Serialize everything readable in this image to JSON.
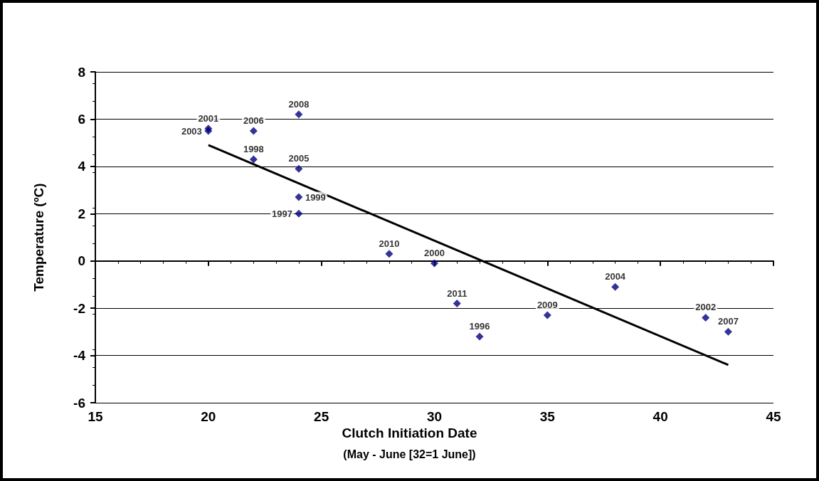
{
  "chart_data": {
    "type": "scatter",
    "xlabel": "Clutch Initiation Date",
    "ylabel": "Temperature (ºC)",
    "xlim": [
      15,
      45
    ],
    "xticks": [
      15,
      20,
      25,
      30,
      35,
      40,
      45
    ],
    "ylim": [
      -6,
      8
    ],
    "yticks": [
      -6,
      -4,
      -2,
      0,
      2,
      4,
      6,
      8
    ],
    "grid": "y",
    "marker": "diamond",
    "series": [
      {
        "color": "#000080",
        "x": [
          20,
          20,
          22,
          24,
          22,
          24,
          24,
          24,
          28,
          30,
          31,
          32,
          35,
          38,
          42,
          43
        ],
        "values": [
          5.6,
          5.5,
          5.5,
          6.2,
          4.3,
          3.9,
          2.7,
          2.0,
          0.3,
          -0.1,
          -1.8,
          -3.2,
          -2.3,
          -1.1,
          -2.4,
          -3.0
        ]
      },
      {
        "type": "line",
        "color": "#000000",
        "marker": "none",
        "x": [
          20,
          43
        ],
        "values": [
          4.9,
          -4.4
        ]
      }
    ],
    "annotations": [
      {
        "text": "2001",
        "x": 20,
        "y": 5.6
      },
      {
        "text": "2003",
        "x": 20,
        "y": 5.5
      },
      {
        "text": "2006",
        "x": 22,
        "y": 5.5
      },
      {
        "text": "2008",
        "x": 24,
        "y": 6.2
      },
      {
        "text": "1998",
        "x": 22,
        "y": 4.3
      },
      {
        "text": "2005",
        "x": 24,
        "y": 3.9
      },
      {
        "text": "1999",
        "x": 24,
        "y": 2.7
      },
      {
        "text": "1997",
        "x": 24,
        "y": 2.0
      },
      {
        "text": "2010",
        "x": 28,
        "y": 0.3
      },
      {
        "text": "2000",
        "x": 30,
        "y": -0.1
      },
      {
        "text": "2011",
        "x": 31,
        "y": -1.8
      },
      {
        "text": "1996",
        "x": 32,
        "y": -3.2
      },
      {
        "text": "2009",
        "x": 35,
        "y": -2.3
      },
      {
        "text": "2004",
        "x": 38,
        "y": -1.1
      },
      {
        "text": "2002",
        "x": 42,
        "y": -2.4
      },
      {
        "text": "2007",
        "x": 43,
        "y": -3.0
      },
      "(May - June [32=1 June])"
    ]
  }
}
